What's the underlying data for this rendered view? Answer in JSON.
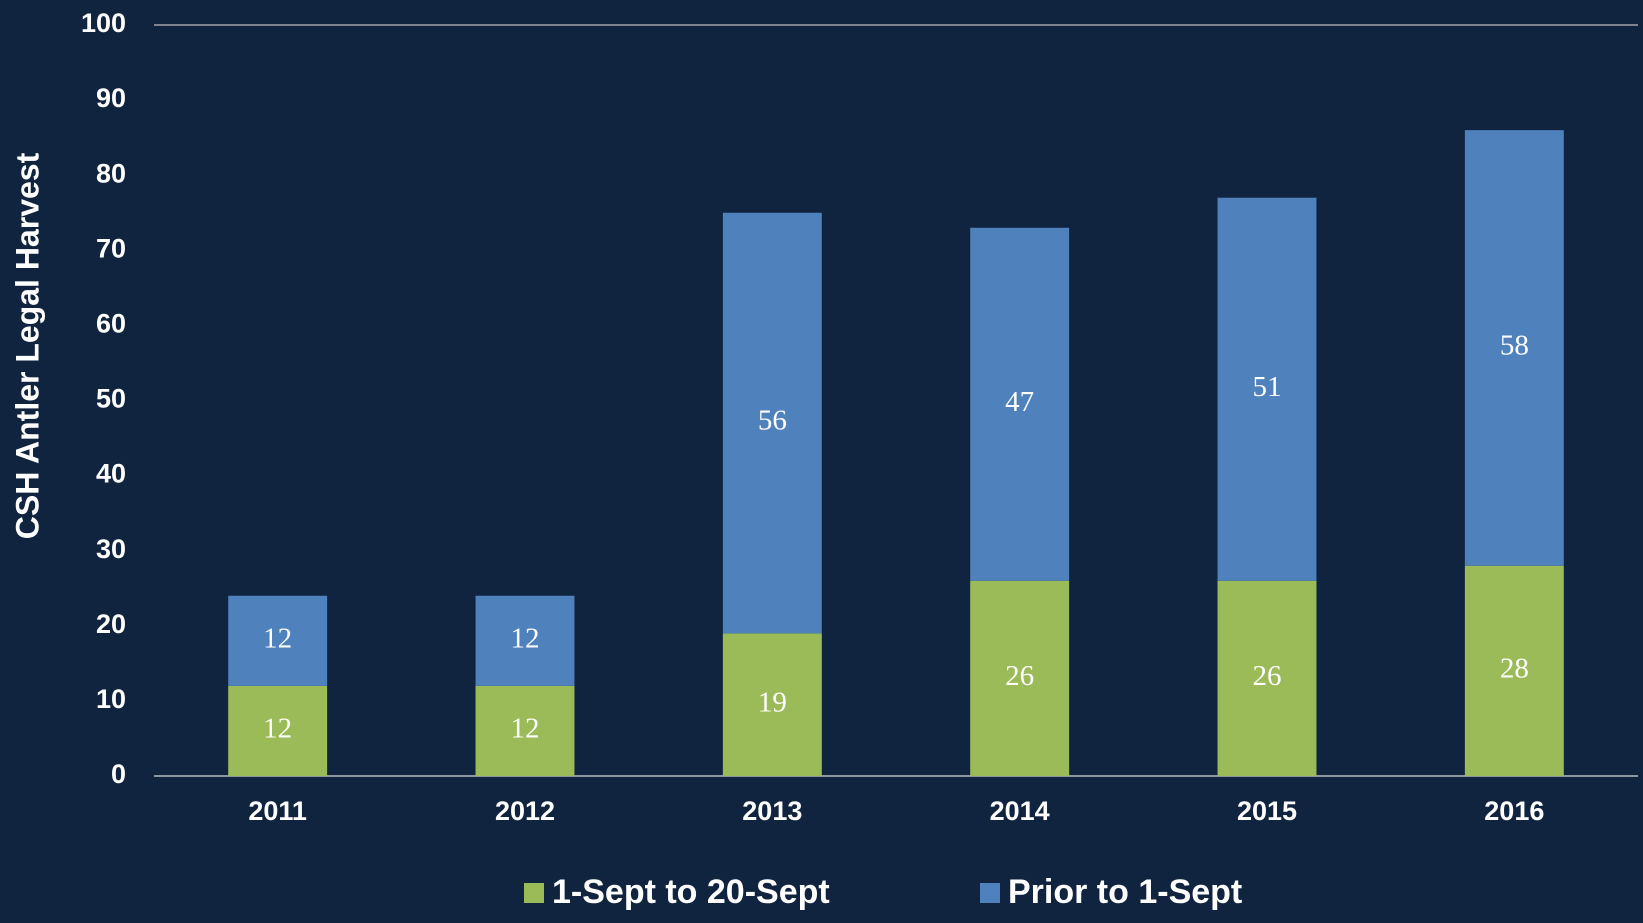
{
  "chart_data": {
    "type": "stacked_bar",
    "y_label": "CSH Antler Legal Harvest",
    "categories": [
      "2011",
      "2012",
      "2013",
      "2014",
      "2015",
      "2016"
    ],
    "series": [
      {
        "name": "1-Sept to 20-Sept",
        "color": "#9bbb59",
        "values": [
          12,
          12,
          19,
          26,
          26,
          28
        ]
      },
      {
        "name": "Prior to 1-Sept",
        "color": "#4f81bd",
        "values": [
          12,
          12,
          56,
          47,
          51,
          58
        ]
      }
    ],
    "ylim": [
      0,
      100
    ],
    "yticks": [
      0,
      10,
      20,
      30,
      40,
      50,
      60,
      70,
      80,
      90,
      100
    ],
    "grid": false,
    "legend": "bottom"
  }
}
